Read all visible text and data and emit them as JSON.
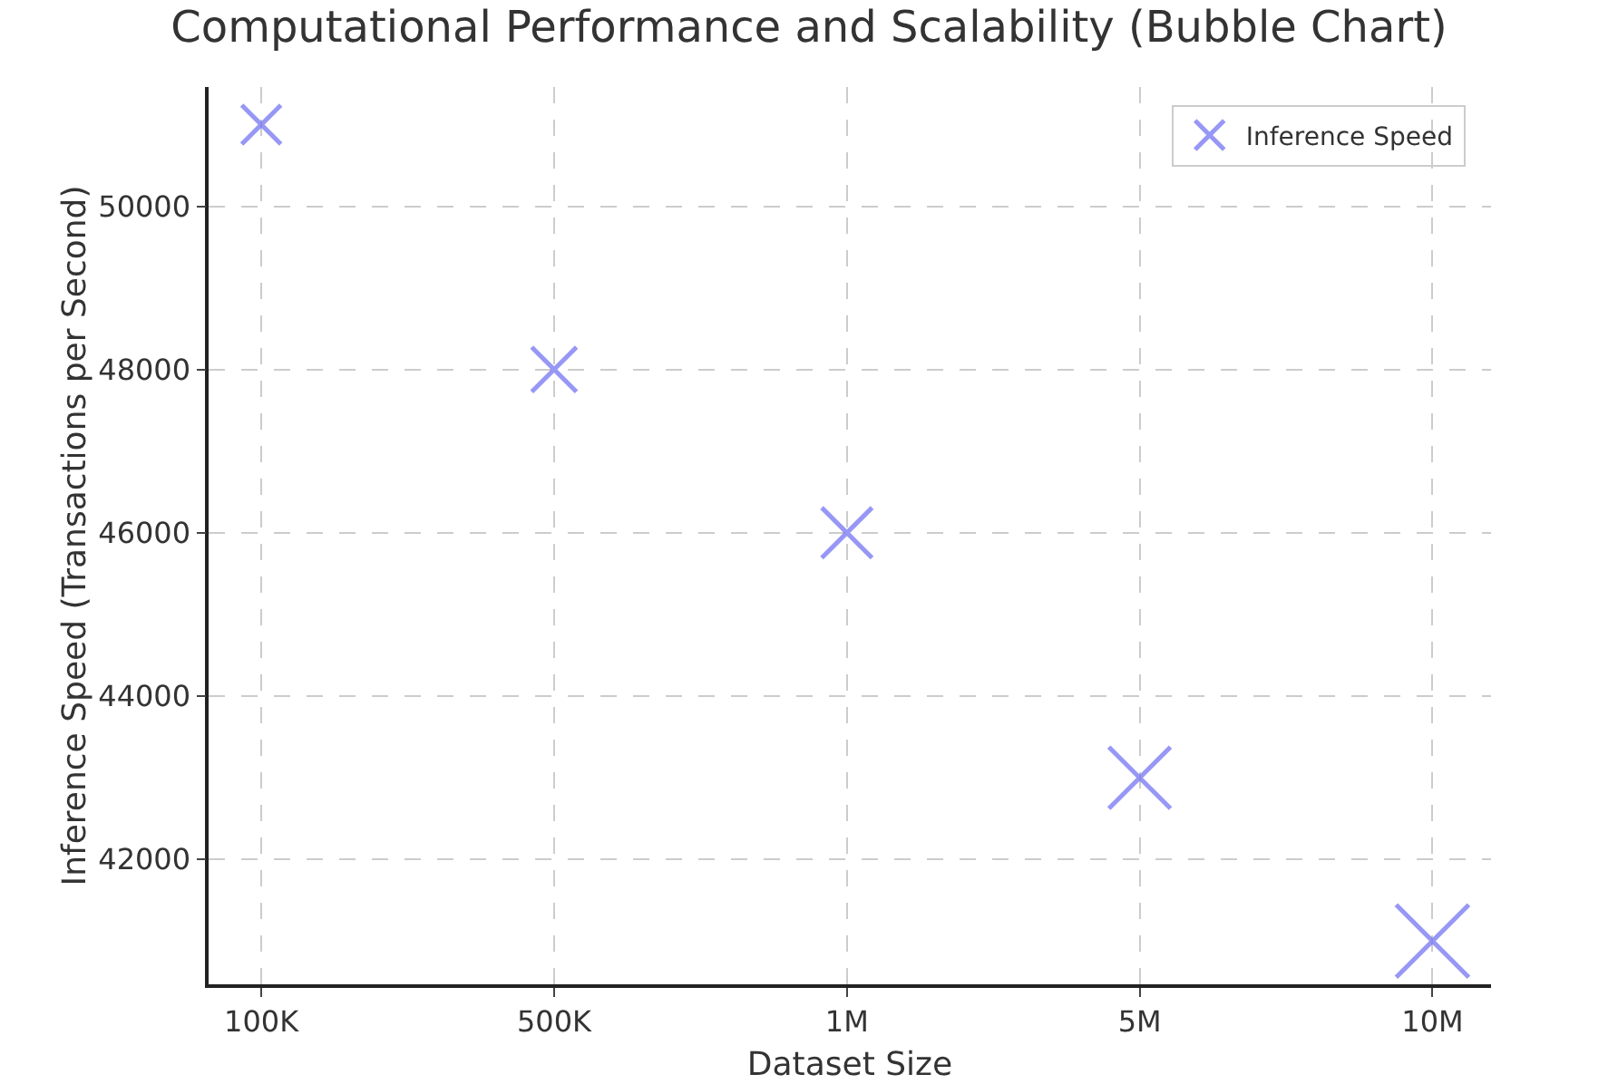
{
  "chart_data": {
    "type": "bubble",
    "title": "Computational Performance and Scalability (Bubble Chart)",
    "xlabel": "Dataset Size",
    "ylabel": "Inference Speed (Transactions per Second)",
    "categories": [
      "100K",
      "500K",
      "1M",
      "5M",
      "10M"
    ],
    "series": [
      {
        "name": "Inference Speed",
        "color": "#6b6bf2",
        "values": [
          51000,
          48000,
          46000,
          43000,
          41000
        ],
        "sizes": [
          0.29,
          0.38,
          0.48,
          0.72,
          1
        ]
      }
    ],
    "ylim": [
      40470,
      51460
    ],
    "yticks": [
      42000,
      44000,
      46000,
      48000,
      50000
    ],
    "grid": true,
    "legend": "top right",
    "marker": "cross"
  }
}
